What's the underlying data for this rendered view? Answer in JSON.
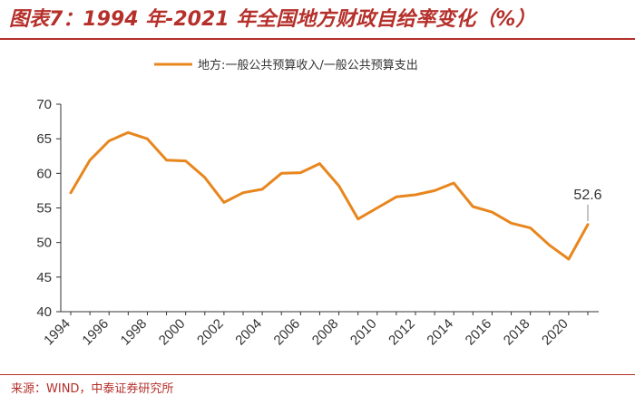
{
  "title": "图表7：1994 年-2021 年全国地方财政自给率变化（%）",
  "source": "来源：WIND，中泰证券研究所",
  "colors": {
    "accent": "#b5302b",
    "series": "#e8861e",
    "axis": "#333333"
  },
  "chart_data": {
    "type": "line",
    "title": "图表7：1994 年-2021 年全国地方财政自给率变化（%）",
    "xlabel": "",
    "ylabel": "",
    "ylim": [
      40,
      70
    ],
    "xlim": [
      1994,
      2021
    ],
    "yticks": [
      40,
      45,
      50,
      55,
      60,
      65,
      70
    ],
    "xticks": [
      1994,
      1996,
      1998,
      2000,
      2002,
      2004,
      2006,
      2008,
      2010,
      2012,
      2014,
      2016,
      2018,
      2020
    ],
    "x": [
      1994,
      1995,
      1996,
      1997,
      1998,
      1999,
      2000,
      2001,
      2002,
      2003,
      2004,
      2005,
      2006,
      2007,
      2008,
      2009,
      2010,
      2011,
      2012,
      2013,
      2014,
      2015,
      2016,
      2017,
      2018,
      2019,
      2020,
      2021
    ],
    "series": [
      {
        "name": "地方:一般公共预算收入/一般公共预算支出",
        "values": [
          57.2,
          61.9,
          64.7,
          65.9,
          65.0,
          61.9,
          61.8,
          59.4,
          55.8,
          57.2,
          57.7,
          60.0,
          60.1,
          61.4,
          58.2,
          53.4,
          55.0,
          56.6,
          56.9,
          57.5,
          58.6,
          55.2,
          54.4,
          52.8,
          52.1,
          49.6,
          47.6,
          52.6
        ]
      }
    ],
    "annotations": [
      {
        "x": 2021,
        "y": 52.6,
        "text": "52.6"
      }
    ],
    "legend": "top-center",
    "grid": false
  }
}
